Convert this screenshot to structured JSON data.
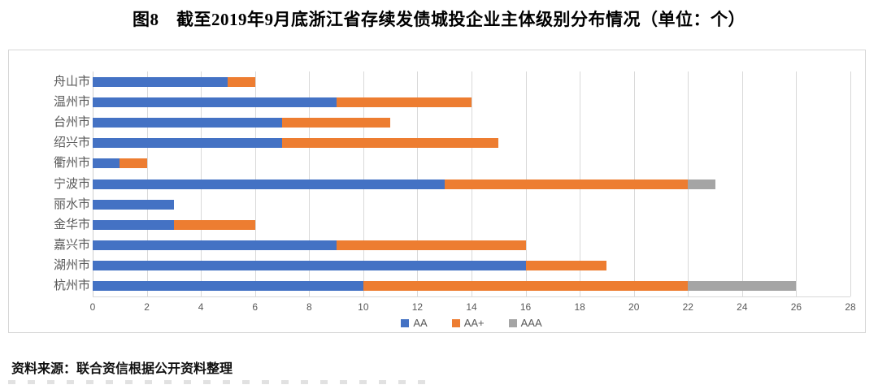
{
  "figure": {
    "title": "图8　截至2019年9月底浙江省存续发债城投企业主体级别分布情况（单位：个）",
    "source_note": "资料来源：联合资信根据公开资料整理"
  },
  "chart_data": {
    "type": "bar",
    "orientation": "horizontal",
    "stacked": true,
    "title": "截至2019年9月底浙江省存续发债城投企业主体级别分布情况",
    "unit_label": "个",
    "categories_top_to_bottom": [
      "舟山市",
      "温州市",
      "台州市",
      "绍兴市",
      "衢州市",
      "宁波市",
      "丽水市",
      "金华市",
      "嘉兴市",
      "湖州市",
      "杭州市"
    ],
    "series": [
      {
        "name": "AA",
        "color": "#4472C4",
        "values": [
          5,
          9,
          7,
          7,
          1,
          13,
          3,
          3,
          9,
          16,
          10
        ]
      },
      {
        "name": "AA+",
        "color": "#ED7D31",
        "values": [
          1,
          5,
          4,
          8,
          1,
          9,
          0,
          3,
          7,
          3,
          12
        ]
      },
      {
        "name": "AAA",
        "color": "#A5A5A5",
        "values": [
          0,
          0,
          0,
          0,
          0,
          1,
          0,
          0,
          0,
          0,
          4
        ]
      }
    ],
    "totals_top_to_bottom": [
      6,
      14,
      11,
      15,
      2,
      23,
      3,
      6,
      16,
      19,
      26
    ],
    "x_axis": {
      "min": 0,
      "max": 28,
      "tick_step": 2,
      "ticks": [
        0,
        2,
        4,
        6,
        8,
        10,
        12,
        14,
        16,
        18,
        20,
        22,
        24,
        26,
        28
      ]
    },
    "grid": "vertical-only",
    "gridline_color": "#D9D9D9",
    "axis_text_color": "#595959",
    "legend_position": "bottom-center"
  }
}
